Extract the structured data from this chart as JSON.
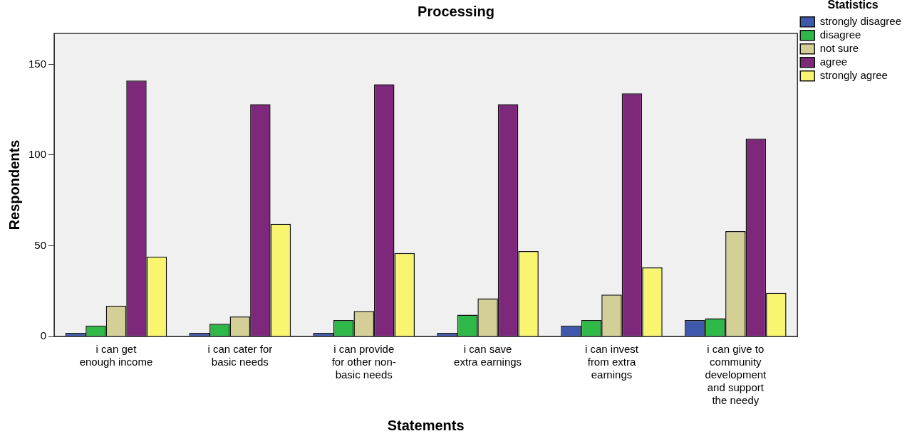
{
  "chart_data": {
    "type": "bar",
    "title": "Processing",
    "xlabel": "Statements",
    "ylabel": "Respondents",
    "legend_title": "Statistics",
    "categories": [
      "i can get\nenough income",
      "i can cater for\nbasic needs",
      "i can provide\nfor other non-\nbasic needs",
      "i can save\nextra earnings",
      "i can invest\nfrom extra\nearnings",
      "i can give to\ncommunity\ndevelopment\nand support\nthe needy"
    ],
    "series": [
      {
        "name": "strongly disagree",
        "color": "#3e58ac",
        "values": [
          2,
          2,
          2,
          2,
          6,
          9
        ]
      },
      {
        "name": "disagree",
        "color": "#2eb848",
        "values": [
          6,
          7,
          9,
          12,
          9,
          10
        ]
      },
      {
        "name": "not sure",
        "color": "#d4cf96",
        "values": [
          17,
          11,
          14,
          21,
          23,
          58
        ]
      },
      {
        "name": "agree",
        "color": "#7e287c",
        "values": [
          141,
          128,
          139,
          128,
          134,
          109
        ]
      },
      {
        "name": "strongly agree",
        "color": "#f9f571",
        "values": [
          44,
          62,
          46,
          47,
          38,
          24
        ]
      }
    ],
    "ylim": [
      0,
      167
    ],
    "yticks": [
      0,
      50,
      100,
      150
    ],
    "grid": false,
    "legend": "top right"
  }
}
